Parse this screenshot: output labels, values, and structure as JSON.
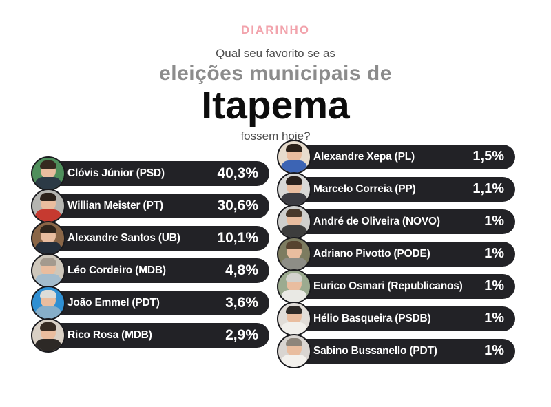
{
  "brand": {
    "logo": "DIARINHO",
    "color": "#f2a3ac"
  },
  "header": {
    "line1": "Qual seu favorito se as",
    "line2": "eleições municipais de",
    "city": "Itapema",
    "line3": "fossem hoje?"
  },
  "colors": {
    "pill": "#222226",
    "pill_text": "#ffffff",
    "title_gray": "#8c8c8c",
    "subtitle_gray": "#4d4d4d",
    "city_black": "#0d0d0d",
    "skin": "#e9bd9f"
  },
  "columns": {
    "left": [
      {
        "name": "Clóvis Júnior (PSD)",
        "pct": "40,3%",
        "photo": {
          "bg": "#4f8f5c",
          "shirt": "#2c3a46",
          "hair": "#35291f"
        }
      },
      {
        "name": "Willian Meister (PT)",
        "pct": "30,6%",
        "photo": {
          "bg": "#b5b5b1",
          "shirt": "#c63a30",
          "hair": "#2c221b"
        }
      },
      {
        "name": "Alexandre Santos (UB)",
        "pct": "10,1%",
        "photo": {
          "bg": "#8a6647",
          "shirt": "#252f3b",
          "hair": "#30261d"
        }
      },
      {
        "name": "Léo Cordeiro (MDB)",
        "pct": "4,8%",
        "photo": {
          "bg": "#cec7bb",
          "shirt": "#a3bccd",
          "hair": "#a49a8e"
        }
      },
      {
        "name": "João Emmel (PDT)",
        "pct": "3,6%",
        "photo": {
          "bg": "#2f8fd2",
          "shirt": "#86aec9",
          "hair": "#dcdcd8"
        }
      },
      {
        "name": "Rico Rosa (MDB)",
        "pct": "2,9%",
        "photo": {
          "bg": "#d9d0c5",
          "shirt": "#2d2926",
          "hair": "#372b22"
        }
      }
    ],
    "right": [
      {
        "name": "Alexandre Xepa (PL)",
        "pct": "1,5%",
        "photo": {
          "bg": "#e7dccd",
          "shirt": "#3c64b4",
          "hair": "#2c221a"
        }
      },
      {
        "name": "Marcelo Correia (PP)",
        "pct": "1,1%",
        "photo": {
          "bg": "#d8d8d6",
          "shirt": "#3b3b41",
          "hair": "#28201c"
        }
      },
      {
        "name": "André de Oliveira (NOVO)",
        "pct": "1%",
        "photo": {
          "bg": "#cfcfcd",
          "shirt": "#3d3d3d",
          "hair": "#49392b"
        }
      },
      {
        "name": "Adriano Pivotto (PODE)",
        "pct": "1%",
        "photo": {
          "bg": "#7d7c60",
          "shirt": "#8d8d86",
          "hair": "#57432f"
        }
      },
      {
        "name": "Eurico Osmari (Republicanos)",
        "pct": "1%",
        "photo": {
          "bg": "#9cab90",
          "shirt": "#e9e9e4",
          "hair": "#d2d2cd"
        }
      },
      {
        "name": "Hélio Basqueira (PSDB)",
        "pct": "1%",
        "photo": {
          "bg": "#e1ddd8",
          "shirt": "#f1efeb",
          "hair": "#2e2a27"
        }
      },
      {
        "name": "Sabino Bussanello (PDT)",
        "pct": "1%",
        "photo": {
          "bg": "#d9d5d1",
          "shirt": "#f3f1ed",
          "hair": "#8d857b"
        }
      }
    ]
  },
  "chart_data": {
    "type": "bar",
    "title": "Qual seu favorito se as eleições municipais de Itapema fossem hoje?",
    "unit": "%",
    "categories": [
      "Clóvis Júnior (PSD)",
      "Willian Meister (PT)",
      "Alexandre Santos (UB)",
      "Léo Cordeiro (MDB)",
      "João Emmel (PDT)",
      "Rico Rosa (MDB)",
      "Alexandre Xepa (PL)",
      "Marcelo Correia (PP)",
      "André de Oliveira (NOVO)",
      "Adriano Pivotto (PODE)",
      "Eurico Osmari (Republicanos)",
      "Hélio Basqueira (PSDB)",
      "Sabino Bussanello (PDT)"
    ],
    "values": [
      40.3,
      30.6,
      10.1,
      4.8,
      3.6,
      2.9,
      1.5,
      1.1,
      1,
      1,
      1,
      1,
      1
    ],
    "value_labels": [
      "40,3%",
      "30,6%",
      "10,1%",
      "4,8%",
      "3,6%",
      "2,9%",
      "1,5%",
      "1,1%",
      "1%",
      "1%",
      "1%",
      "1%",
      "1%"
    ],
    "source_brand": "DIARINHO"
  }
}
